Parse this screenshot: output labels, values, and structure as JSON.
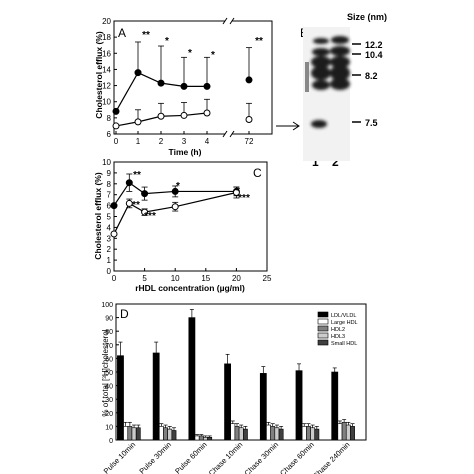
{
  "chart_data": [
    {
      "panel": "A",
      "type": "line",
      "ylabel": "Cholesterol efflux (%)",
      "xlabel": "Time (h)",
      "ylim": [
        6,
        20
      ],
      "yticks": [
        "6",
        "8",
        "10",
        "12",
        "14",
        "16",
        "18",
        "20"
      ],
      "xticks": [
        "0",
        "1",
        "2",
        "3",
        "4",
        "72"
      ],
      "series": [
        {
          "marker": "filled",
          "x": [
            0,
            1,
            2,
            3,
            4,
            72
          ],
          "y": [
            8.8,
            13.6,
            12.3,
            11.9,
            11.9,
            12.7
          ],
          "err": [
            0,
            3.8,
            4.6,
            3.6,
            3.6,
            4.0
          ]
        },
        {
          "marker": "open",
          "x": [
            0,
            1,
            2,
            3,
            4,
            72
          ],
          "y": [
            7.0,
            7.5,
            8.2,
            8.3,
            8.6,
            7.8
          ],
          "err": [
            0,
            1.5,
            1.6,
            1.6,
            1.7,
            2.0
          ]
        }
      ],
      "annotations": [
        "**",
        "*",
        "*",
        "*",
        "**"
      ]
    },
    {
      "panel": "B",
      "type": "gel",
      "title": "Size (nm)",
      "markers": [
        "12.2",
        "10.4",
        "8.2",
        "7.5"
      ],
      "lanes": [
        "1",
        "2"
      ]
    },
    {
      "panel": "C",
      "type": "line",
      "ylabel": "Cholesterol efflux (%)",
      "xlabel": "rHDL concentration (µg/ml)",
      "ylim": [
        0,
        10
      ],
      "xlim": [
        0,
        25
      ],
      "yticks": [
        "0",
        "1",
        "2",
        "3",
        "4",
        "5",
        "6",
        "7",
        "8",
        "9",
        "10"
      ],
      "xticks": [
        "0",
        "5",
        "10",
        "15",
        "20",
        "25"
      ],
      "series": [
        {
          "marker": "filled",
          "x": [
            0,
            2.5,
            5,
            10,
            20
          ],
          "y": [
            6.0,
            8.1,
            7.1,
            7.3,
            7.3
          ],
          "err": [
            0,
            0.8,
            0.6,
            0.5,
            0.4
          ]
        },
        {
          "marker": "open",
          "x": [
            0,
            2.5,
            5,
            10,
            20
          ],
          "y": [
            3.4,
            6.2,
            5.4,
            5.9,
            7.2
          ],
          "err": [
            0,
            0.4,
            0.3,
            0.4,
            0.5
          ]
        }
      ],
      "annotations": [
        "**",
        "**",
        "***",
        "*",
        "*",
        "***"
      ]
    },
    {
      "panel": "D",
      "type": "bar",
      "ylabel": "% of total [³H]cholesterol",
      "ylim": [
        0,
        100
      ],
      "yticks": [
        "0",
        "10",
        "20",
        "30",
        "40",
        "50",
        "60",
        "70",
        "80",
        "90",
        "100"
      ],
      "categories": [
        "Pulse 10min",
        "Pulse 30min",
        "Pulse 60min",
        "Chase 10min",
        "Chase 30min",
        "Chase 60min",
        "Chase 240min"
      ],
      "series": [
        {
          "name": "LDL/VLDL",
          "color": "#000000",
          "values": [
            62,
            64,
            90,
            56,
            49,
            51,
            50
          ],
          "err": [
            10,
            8,
            6,
            7,
            5,
            5,
            3
          ]
        },
        {
          "name": "Large HDL",
          "color": "#ffffff",
          "values": [
            10,
            10,
            3,
            12,
            11,
            10,
            12
          ],
          "err": [
            3,
            2,
            1,
            2,
            2,
            2,
            2
          ]
        },
        {
          "name": "HDL2",
          "color": "#808080",
          "values": [
            10,
            9,
            3,
            10,
            10,
            10,
            13
          ],
          "err": [
            3,
            2,
            1,
            2,
            2,
            2,
            2
          ]
        },
        {
          "name": "HDL3",
          "color": "#cccccc",
          "values": [
            9,
            8,
            2,
            9,
            9,
            9,
            11
          ],
          "err": [
            2,
            2,
            1,
            2,
            2,
            2,
            2
          ]
        },
        {
          "name": "Small HDL",
          "color": "#404040",
          "values": [
            9,
            7,
            2,
            8,
            8,
            8,
            10
          ],
          "err": [
            2,
            2,
            1,
            2,
            2,
            2,
            2
          ]
        }
      ]
    }
  ]
}
